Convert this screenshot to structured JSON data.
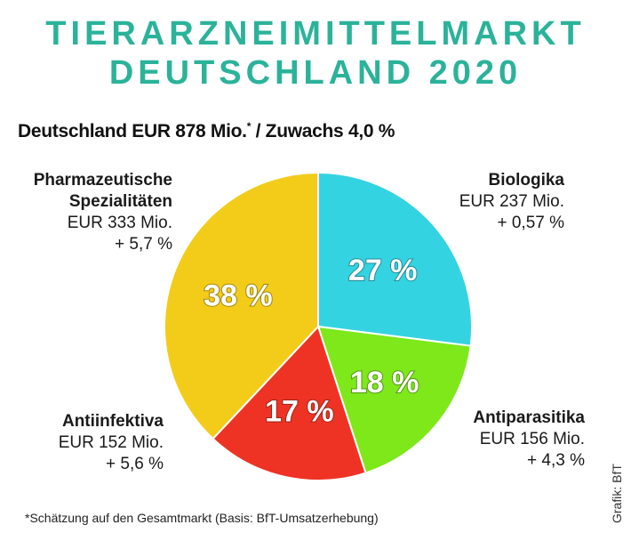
{
  "header": {
    "title_line1": "TIERARZNEIMITTELMARKT",
    "title_line2": "DEUTSCHLAND 2020",
    "subtitle_main": "Deutschland EUR 878 Mio.",
    "subtitle_marker": "*",
    "subtitle_rest": " / Zuwachs 4,0 %"
  },
  "labels": {
    "pharma": {
      "name1": "Pharmazeutische",
      "name2": "Spezialitäten",
      "value": "EUR 333 Mio.",
      "growth": "+ 5,7 %"
    },
    "bio": {
      "name1": "Biologika",
      "value": "EUR 237 Mio.",
      "growth": "+ 0,57 %"
    },
    "antiinf": {
      "name1": "Antiinfektiva",
      "value": "EUR 152 Mio.",
      "growth": "+ 5,6 %"
    },
    "antipara": {
      "name1": "Antiparasitika",
      "value": "EUR 156 Mio.",
      "growth": "+ 4,3 %"
    }
  },
  "footer": {
    "footnote": "*Schätzung auf den Gesamtmarkt (Basis: BfT-Umsatzerhebung)",
    "credit": "Grafik: BfT"
  },
  "chart_data": {
    "type": "pie",
    "title": "TIERARZNEIMITTELMARKT DEUTSCHLAND 2020",
    "subtitle": "Deutschland EUR 878 Mio.* / Zuwachs 4,0 %",
    "total_value": 878,
    "total_unit": "EUR Mio.",
    "total_growth_percent": 4.0,
    "start": "12 o'clock, clockwise",
    "slices": [
      {
        "name": "Biologika",
        "percent": 27,
        "label": "27 %",
        "value": 237,
        "growth": 0.57,
        "color": "#34d3e2"
      },
      {
        "name": "Antiparasitika",
        "percent": 18,
        "label": "18 %",
        "value": 156,
        "growth": 4.3,
        "color": "#7ee81a"
      },
      {
        "name": "Antiinfektiva",
        "percent": 17,
        "label": "17 %",
        "value": 152,
        "growth": 5.6,
        "color": "#ee3324"
      },
      {
        "name": "Pharmazeutische Spezialitäten",
        "percent": 38,
        "label": "38 %",
        "value": 333,
        "growth": 5.7,
        "color": "#f3cc19"
      }
    ]
  }
}
